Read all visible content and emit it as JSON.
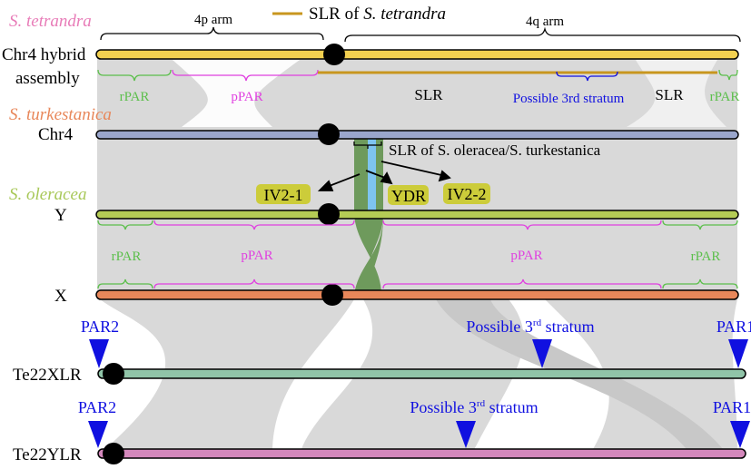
{
  "legend": {
    "label_prefix": "SLR of ",
    "label_species": "S. tetrandra",
    "color": "#c8961e"
  },
  "arms": {
    "p": "4p arm",
    "q": "4q arm"
  },
  "species": {
    "tetrandra": "S. tetrandra",
    "turkestanica": "S. turkestanica",
    "oleracea": "S. oleracea"
  },
  "chromosomes": {
    "chr4_hybrid_line1": "Chr4 hybrid",
    "chr4_hybrid_line2": "assembly",
    "chr4": "Chr4",
    "y": "Y",
    "x": "X",
    "te22xlr": "Te22XLR",
    "te22ylr": "Te22YLR"
  },
  "regions_tetrandra": {
    "rpar_left": "rPAR",
    "ppar": "pPAR",
    "slr1": "SLR",
    "stratum": "Possible 3rd stratum",
    "slr2": "SLR",
    "rpar_right": "rPAR"
  },
  "slr_oleracea": "SLR of S. oleracea/S. turkestanica",
  "boxes": {
    "iv21": "IV2-1",
    "ydr": "YDR",
    "iv22": "IV2-2"
  },
  "regions_oleracea": {
    "rpar_left": "rPAR",
    "ppar_left": "pPAR",
    "ppar_right": "pPAR",
    "rpar_right": "rPAR"
  },
  "markers_x": {
    "par2": "PAR2",
    "stratum": "Possible 3",
    "stratum_sup": "rd",
    "stratum_suffix": " stratum",
    "par1": "PAR1"
  },
  "markers_y": {
    "par2": "PAR2",
    "stratum": "Possible 3",
    "stratum_sup": "rd",
    "stratum_suffix": " stratum",
    "par1": "PAR1"
  },
  "colors": {
    "tetrandra": "#e87cb8",
    "turkestanica": "#e8875a",
    "oleracea": "#a8c858",
    "rpar": "#5cbf4c",
    "ppar": "#e040e0",
    "stratum": "#1010e0",
    "chr4_hybrid": "#f2d050",
    "chr4": "#9aa6cc",
    "y": "#b5cc55",
    "x": "#e8875a",
    "te22xlr": "#90c4a8",
    "te22ylr": "#d488bc"
  }
}
